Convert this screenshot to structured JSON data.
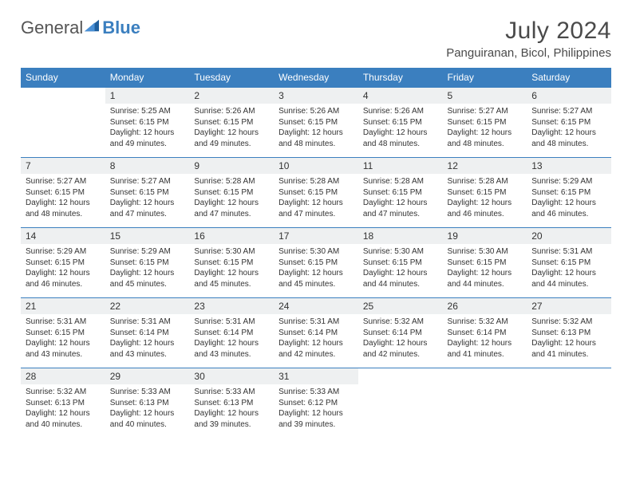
{
  "logo": {
    "text1": "General",
    "text2": "Blue"
  },
  "title": "July 2024",
  "location": "Panguiranan, Bicol, Philippines",
  "colors": {
    "header_bg": "#3b7fbf",
    "header_text": "#ffffff",
    "daynum_bg": "#eef0f1",
    "border": "#3b7fbf",
    "body_text": "#333333",
    "title_text": "#4a4a4a"
  },
  "weekdays": [
    "Sunday",
    "Monday",
    "Tuesday",
    "Wednesday",
    "Thursday",
    "Friday",
    "Saturday"
  ],
  "weeks": [
    [
      null,
      {
        "d": "1",
        "sr": "Sunrise: 5:25 AM",
        "ss": "Sunset: 6:15 PM",
        "dl1": "Daylight: 12 hours",
        "dl2": "and 49 minutes."
      },
      {
        "d": "2",
        "sr": "Sunrise: 5:26 AM",
        "ss": "Sunset: 6:15 PM",
        "dl1": "Daylight: 12 hours",
        "dl2": "and 49 minutes."
      },
      {
        "d": "3",
        "sr": "Sunrise: 5:26 AM",
        "ss": "Sunset: 6:15 PM",
        "dl1": "Daylight: 12 hours",
        "dl2": "and 48 minutes."
      },
      {
        "d": "4",
        "sr": "Sunrise: 5:26 AM",
        "ss": "Sunset: 6:15 PM",
        "dl1": "Daylight: 12 hours",
        "dl2": "and 48 minutes."
      },
      {
        "d": "5",
        "sr": "Sunrise: 5:27 AM",
        "ss": "Sunset: 6:15 PM",
        "dl1": "Daylight: 12 hours",
        "dl2": "and 48 minutes."
      },
      {
        "d": "6",
        "sr": "Sunrise: 5:27 AM",
        "ss": "Sunset: 6:15 PM",
        "dl1": "Daylight: 12 hours",
        "dl2": "and 48 minutes."
      }
    ],
    [
      {
        "d": "7",
        "sr": "Sunrise: 5:27 AM",
        "ss": "Sunset: 6:15 PM",
        "dl1": "Daylight: 12 hours",
        "dl2": "and 48 minutes."
      },
      {
        "d": "8",
        "sr": "Sunrise: 5:27 AM",
        "ss": "Sunset: 6:15 PM",
        "dl1": "Daylight: 12 hours",
        "dl2": "and 47 minutes."
      },
      {
        "d": "9",
        "sr": "Sunrise: 5:28 AM",
        "ss": "Sunset: 6:15 PM",
        "dl1": "Daylight: 12 hours",
        "dl2": "and 47 minutes."
      },
      {
        "d": "10",
        "sr": "Sunrise: 5:28 AM",
        "ss": "Sunset: 6:15 PM",
        "dl1": "Daylight: 12 hours",
        "dl2": "and 47 minutes."
      },
      {
        "d": "11",
        "sr": "Sunrise: 5:28 AM",
        "ss": "Sunset: 6:15 PM",
        "dl1": "Daylight: 12 hours",
        "dl2": "and 47 minutes."
      },
      {
        "d": "12",
        "sr": "Sunrise: 5:28 AM",
        "ss": "Sunset: 6:15 PM",
        "dl1": "Daylight: 12 hours",
        "dl2": "and 46 minutes."
      },
      {
        "d": "13",
        "sr": "Sunrise: 5:29 AM",
        "ss": "Sunset: 6:15 PM",
        "dl1": "Daylight: 12 hours",
        "dl2": "and 46 minutes."
      }
    ],
    [
      {
        "d": "14",
        "sr": "Sunrise: 5:29 AM",
        "ss": "Sunset: 6:15 PM",
        "dl1": "Daylight: 12 hours",
        "dl2": "and 46 minutes."
      },
      {
        "d": "15",
        "sr": "Sunrise: 5:29 AM",
        "ss": "Sunset: 6:15 PM",
        "dl1": "Daylight: 12 hours",
        "dl2": "and 45 minutes."
      },
      {
        "d": "16",
        "sr": "Sunrise: 5:30 AM",
        "ss": "Sunset: 6:15 PM",
        "dl1": "Daylight: 12 hours",
        "dl2": "and 45 minutes."
      },
      {
        "d": "17",
        "sr": "Sunrise: 5:30 AM",
        "ss": "Sunset: 6:15 PM",
        "dl1": "Daylight: 12 hours",
        "dl2": "and 45 minutes."
      },
      {
        "d": "18",
        "sr": "Sunrise: 5:30 AM",
        "ss": "Sunset: 6:15 PM",
        "dl1": "Daylight: 12 hours",
        "dl2": "and 44 minutes."
      },
      {
        "d": "19",
        "sr": "Sunrise: 5:30 AM",
        "ss": "Sunset: 6:15 PM",
        "dl1": "Daylight: 12 hours",
        "dl2": "and 44 minutes."
      },
      {
        "d": "20",
        "sr": "Sunrise: 5:31 AM",
        "ss": "Sunset: 6:15 PM",
        "dl1": "Daylight: 12 hours",
        "dl2": "and 44 minutes."
      }
    ],
    [
      {
        "d": "21",
        "sr": "Sunrise: 5:31 AM",
        "ss": "Sunset: 6:15 PM",
        "dl1": "Daylight: 12 hours",
        "dl2": "and 43 minutes."
      },
      {
        "d": "22",
        "sr": "Sunrise: 5:31 AM",
        "ss": "Sunset: 6:14 PM",
        "dl1": "Daylight: 12 hours",
        "dl2": "and 43 minutes."
      },
      {
        "d": "23",
        "sr": "Sunrise: 5:31 AM",
        "ss": "Sunset: 6:14 PM",
        "dl1": "Daylight: 12 hours",
        "dl2": "and 43 minutes."
      },
      {
        "d": "24",
        "sr": "Sunrise: 5:31 AM",
        "ss": "Sunset: 6:14 PM",
        "dl1": "Daylight: 12 hours",
        "dl2": "and 42 minutes."
      },
      {
        "d": "25",
        "sr": "Sunrise: 5:32 AM",
        "ss": "Sunset: 6:14 PM",
        "dl1": "Daylight: 12 hours",
        "dl2": "and 42 minutes."
      },
      {
        "d": "26",
        "sr": "Sunrise: 5:32 AM",
        "ss": "Sunset: 6:14 PM",
        "dl1": "Daylight: 12 hours",
        "dl2": "and 41 minutes."
      },
      {
        "d": "27",
        "sr": "Sunrise: 5:32 AM",
        "ss": "Sunset: 6:13 PM",
        "dl1": "Daylight: 12 hours",
        "dl2": "and 41 minutes."
      }
    ],
    [
      {
        "d": "28",
        "sr": "Sunrise: 5:32 AM",
        "ss": "Sunset: 6:13 PM",
        "dl1": "Daylight: 12 hours",
        "dl2": "and 40 minutes."
      },
      {
        "d": "29",
        "sr": "Sunrise: 5:33 AM",
        "ss": "Sunset: 6:13 PM",
        "dl1": "Daylight: 12 hours",
        "dl2": "and 40 minutes."
      },
      {
        "d": "30",
        "sr": "Sunrise: 5:33 AM",
        "ss": "Sunset: 6:13 PM",
        "dl1": "Daylight: 12 hours",
        "dl2": "and 39 minutes."
      },
      {
        "d": "31",
        "sr": "Sunrise: 5:33 AM",
        "ss": "Sunset: 6:12 PM",
        "dl1": "Daylight: 12 hours",
        "dl2": "and 39 minutes."
      },
      null,
      null,
      null
    ]
  ]
}
